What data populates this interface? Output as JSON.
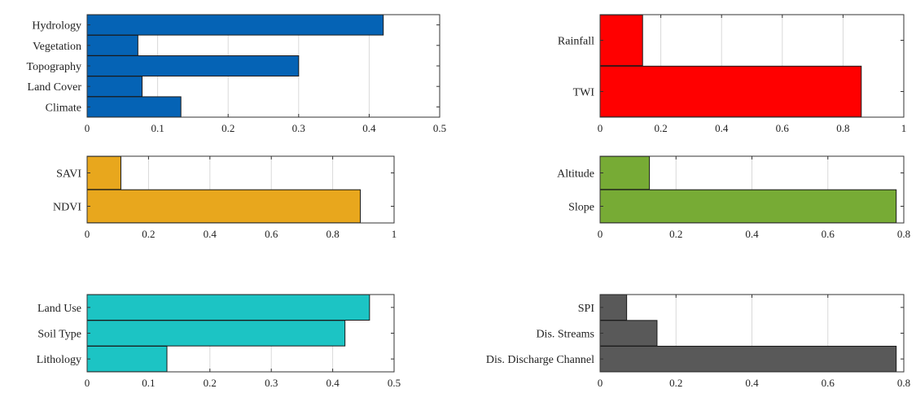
{
  "chart_data": [
    {
      "type": "bar",
      "orientation": "horizontal",
      "categories": [
        "Hydrology",
        "Vegetation",
        "Topography",
        "Land Cover",
        "Climate"
      ],
      "values": [
        0.42,
        0.072,
        0.3,
        0.078,
        0.133
      ],
      "xlim": [
        0,
        0.5
      ],
      "xticks": [
        "0",
        "0.1",
        "0.2",
        "0.3",
        "0.4",
        "0.5"
      ],
      "grid": true,
      "color": "#0563b5"
    },
    {
      "type": "bar",
      "orientation": "horizontal",
      "categories": [
        "Rainfall",
        "TWI"
      ],
      "values": [
        0.14,
        0.86
      ],
      "xlim": [
        0,
        1
      ],
      "xticks": [
        "0",
        "0.2",
        "0.4",
        "0.6",
        "0.8",
        "1"
      ],
      "grid": true,
      "color": "#ff0000"
    },
    {
      "type": "bar",
      "orientation": "horizontal",
      "categories": [
        "SAVI",
        "NDVI"
      ],
      "values": [
        0.11,
        0.89
      ],
      "xlim": [
        0,
        1
      ],
      "xticks": [
        "0",
        "0.2",
        "0.4",
        "0.6",
        "0.8",
        "1"
      ],
      "grid": true,
      "color": "#e8a71d"
    },
    {
      "type": "bar",
      "orientation": "horizontal",
      "categories": [
        "Altitude",
        "Slope"
      ],
      "values": [
        0.13,
        0.78
      ],
      "xlim": [
        0,
        0.8
      ],
      "xticks": [
        "0",
        "0.2",
        "0.4",
        "0.6",
        "0.8"
      ],
      "grid": true,
      "color": "#77ab35"
    },
    {
      "type": "bar",
      "orientation": "horizontal",
      "categories": [
        "Land Use",
        "Soil Type",
        "Lithology"
      ],
      "values": [
        0.46,
        0.42,
        0.13
      ],
      "xlim": [
        0,
        0.5
      ],
      "xticks": [
        "0",
        "0.1",
        "0.2",
        "0.3",
        "0.4",
        "0.5"
      ],
      "grid": true,
      "color": "#1cc4c4"
    },
    {
      "type": "bar",
      "orientation": "horizontal",
      "categories": [
        "SPI",
        "Dis. Streams",
        "Dis. Discharge Channel"
      ],
      "values": [
        0.07,
        0.15,
        0.78
      ],
      "xlim": [
        0,
        0.8
      ],
      "xticks": [
        "0",
        "0.2",
        "0.4",
        "0.6",
        "0.8"
      ],
      "grid": true,
      "color": "#595959"
    }
  ]
}
